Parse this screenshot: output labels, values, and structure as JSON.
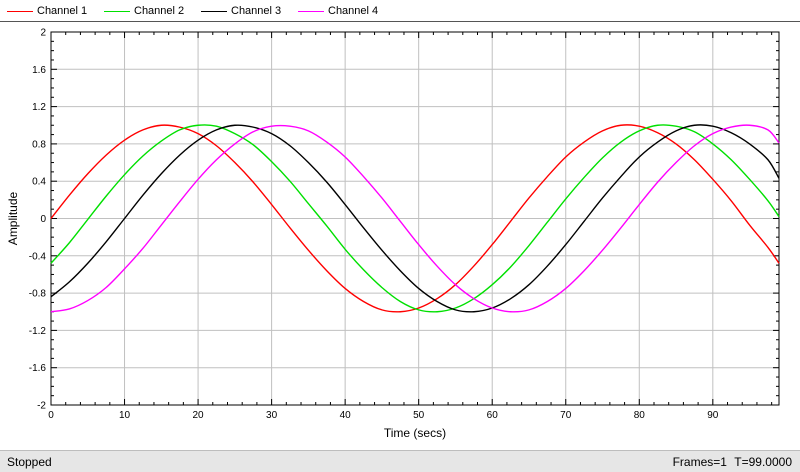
{
  "chart_data": {
    "type": "line",
    "xlabel": "Time (secs)",
    "ylabel": "Amplitude",
    "xlim": [
      0,
      99
    ],
    "ylim": [
      -2,
      2
    ],
    "x_ticks": [
      0,
      10,
      20,
      30,
      40,
      50,
      60,
      70,
      80,
      90
    ],
    "y_ticks": [
      -2,
      -1.6,
      -1.2,
      -0.8,
      -0.4,
      0,
      0.4,
      0.8,
      1.2,
      1.6,
      2
    ],
    "y_tick_labels": [
      "-2",
      "-1.6",
      "-1.2",
      "-0.8",
      "-0.4",
      "0",
      "0.4",
      "0.8",
      "1.2",
      "1.6",
      "2"
    ],
    "grid": true,
    "legend_position": "top-left",
    "x": [
      0,
      2.5,
      5,
      7.5,
      10,
      12.5,
      15,
      17.5,
      20,
      22.5,
      25,
      27.5,
      30,
      32.5,
      35,
      37.5,
      40,
      42.5,
      45,
      47.5,
      50,
      52.5,
      55,
      57.5,
      60,
      62.5,
      65,
      67.5,
      70,
      72.5,
      75,
      77.5,
      80,
      82.5,
      85,
      87.5,
      90,
      92.5,
      95,
      97.5,
      99
    ],
    "series": [
      {
        "name": "Channel 1",
        "color": "#ff0000",
        "values": [
          0.0,
          0.25,
          0.48,
          0.68,
          0.84,
          0.95,
          1.0,
          0.98,
          0.91,
          0.78,
          0.6,
          0.39,
          0.15,
          -0.1,
          -0.34,
          -0.56,
          -0.75,
          -0.89,
          -0.98,
          -1.0,
          -0.96,
          -0.86,
          -0.71,
          -0.51,
          -0.28,
          -0.03,
          0.22,
          0.45,
          0.66,
          0.82,
          0.94,
          1.0,
          0.99,
          0.92,
          0.8,
          0.63,
          0.42,
          0.19,
          -0.07,
          -0.31,
          -0.48
        ]
      },
      {
        "name": "Channel 2",
        "color": "#00e000",
        "values": [
          -0.48,
          -0.26,
          -0.01,
          0.24,
          0.47,
          0.67,
          0.83,
          0.95,
          1.0,
          0.99,
          0.91,
          0.79,
          0.61,
          0.4,
          0.16,
          -0.08,
          -0.33,
          -0.55,
          -0.74,
          -0.89,
          -0.98,
          -1.0,
          -0.96,
          -0.86,
          -0.71,
          -0.52,
          -0.29,
          -0.04,
          0.21,
          0.44,
          0.65,
          0.82,
          0.94,
          1.0,
          0.99,
          0.93,
          0.8,
          0.63,
          0.42,
          0.19,
          0.02
        ]
      },
      {
        "name": "Channel 3",
        "color": "#000000",
        "values": [
          -0.84,
          -0.68,
          -0.48,
          -0.25,
          0.0,
          0.25,
          0.48,
          0.68,
          0.84,
          0.95,
          1.0,
          0.98,
          0.91,
          0.78,
          0.6,
          0.39,
          0.15,
          -0.1,
          -0.34,
          -0.56,
          -0.75,
          -0.89,
          -0.98,
          -1.0,
          -0.96,
          -0.86,
          -0.71,
          -0.51,
          -0.28,
          -0.03,
          0.22,
          0.45,
          0.66,
          0.82,
          0.94,
          1.0,
          0.99,
          0.92,
          0.8,
          0.63,
          0.43
        ]
      },
      {
        "name": "Channel 4",
        "color": "#ff00ff",
        "values": [
          -1.0,
          -0.97,
          -0.88,
          -0.74,
          -0.54,
          -0.32,
          -0.07,
          0.18,
          0.42,
          0.63,
          0.8,
          0.93,
          0.99,
          0.99,
          0.94,
          0.82,
          0.66,
          0.45,
          0.22,
          -0.03,
          -0.28,
          -0.51,
          -0.71,
          -0.86,
          -0.96,
          -1.0,
          -0.98,
          -0.89,
          -0.75,
          -0.56,
          -0.34,
          -0.1,
          0.15,
          0.39,
          0.6,
          0.78,
          0.91,
          0.98,
          1.0,
          0.95,
          0.81
        ]
      }
    ]
  },
  "status": {
    "state": "Stopped",
    "frames": "Frames=1",
    "time": "T=99.0000"
  }
}
